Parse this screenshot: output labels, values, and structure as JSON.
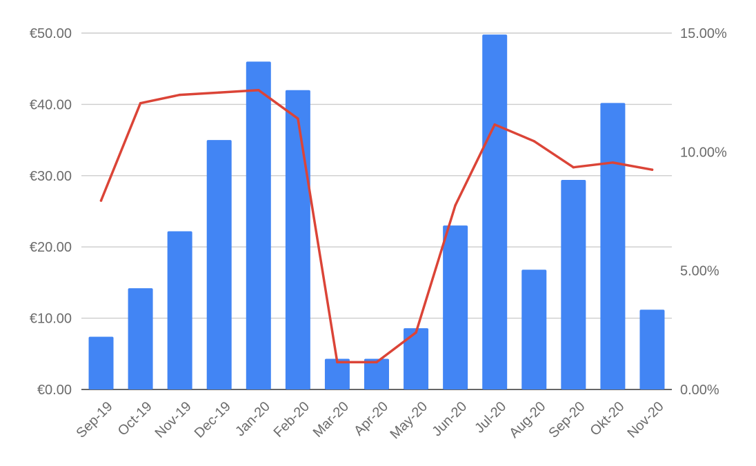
{
  "chart_data": {
    "type": "bar",
    "categories": [
      "Sep-19",
      "Oct-19",
      "Nov-19",
      "Dec-19",
      "Jan-20",
      "Feb-20",
      "Mar-20",
      "Apr-20",
      "May-20",
      "Jun-20",
      "Jul-20",
      "Aug-20",
      "Sep-20",
      "Okt-20",
      "Nov-20"
    ],
    "series": [
      {
        "type": "bar",
        "axis": "left",
        "color": "#4285f4",
        "values": [
          7.4,
          14.2,
          22.2,
          35.0,
          46.0,
          42.0,
          4.3,
          4.3,
          8.6,
          23.0,
          49.8,
          16.8,
          29.4,
          40.2,
          11.2
        ]
      },
      {
        "type": "line",
        "axis": "right",
        "color": "#db4437",
        "values": [
          0.0795,
          0.1205,
          0.124,
          0.125,
          0.126,
          0.114,
          0.0115,
          0.0115,
          0.024,
          0.0775,
          0.1115,
          0.1045,
          0.0935,
          0.0955,
          0.0925
        ]
      }
    ],
    "y_left": {
      "ylim": [
        0,
        50
      ],
      "ticks": [
        0,
        10,
        20,
        30,
        40,
        50
      ],
      "tick_labels": [
        "€0.00",
        "€10.00",
        "€20.00",
        "€30.00",
        "€40.00",
        "€50.00"
      ]
    },
    "y_right": {
      "ylim": [
        0,
        0.15
      ],
      "ticks": [
        0,
        0.05,
        0.1,
        0.15
      ],
      "tick_labels": [
        "0.00%",
        "5.00%",
        "10.00%",
        "15.00%"
      ]
    },
    "grid": true,
    "legend": "none"
  }
}
